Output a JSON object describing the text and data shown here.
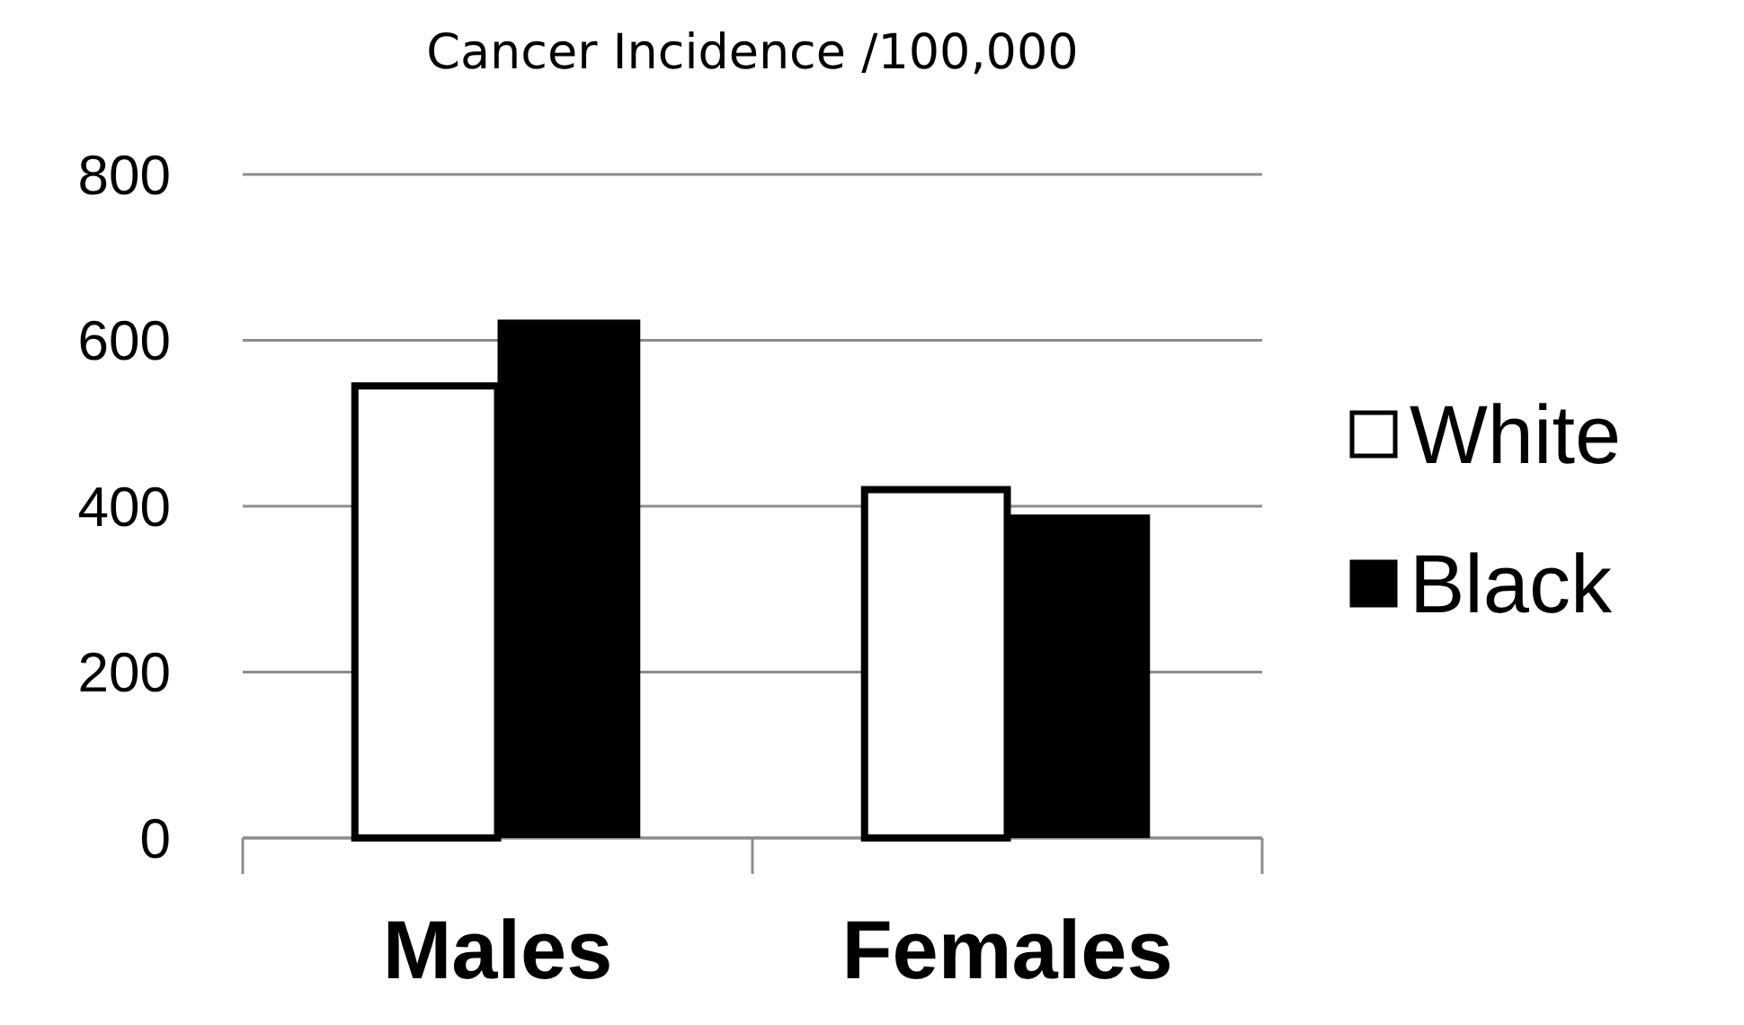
{
  "chart_data": {
    "type": "bar",
    "title": "Cancer Incidence /100,000",
    "categories": [
      "Males",
      "Females"
    ],
    "series": [
      {
        "name": "White",
        "color": "#ffffff",
        "values": [
          545,
          420
        ]
      },
      {
        "name": "Black",
        "color": "#000000",
        "values": [
          625,
          390
        ]
      }
    ],
    "ylim": [
      0,
      800
    ],
    "yticks": [
      0,
      200,
      400,
      600,
      800
    ],
    "grid": "y",
    "legend": "right"
  }
}
